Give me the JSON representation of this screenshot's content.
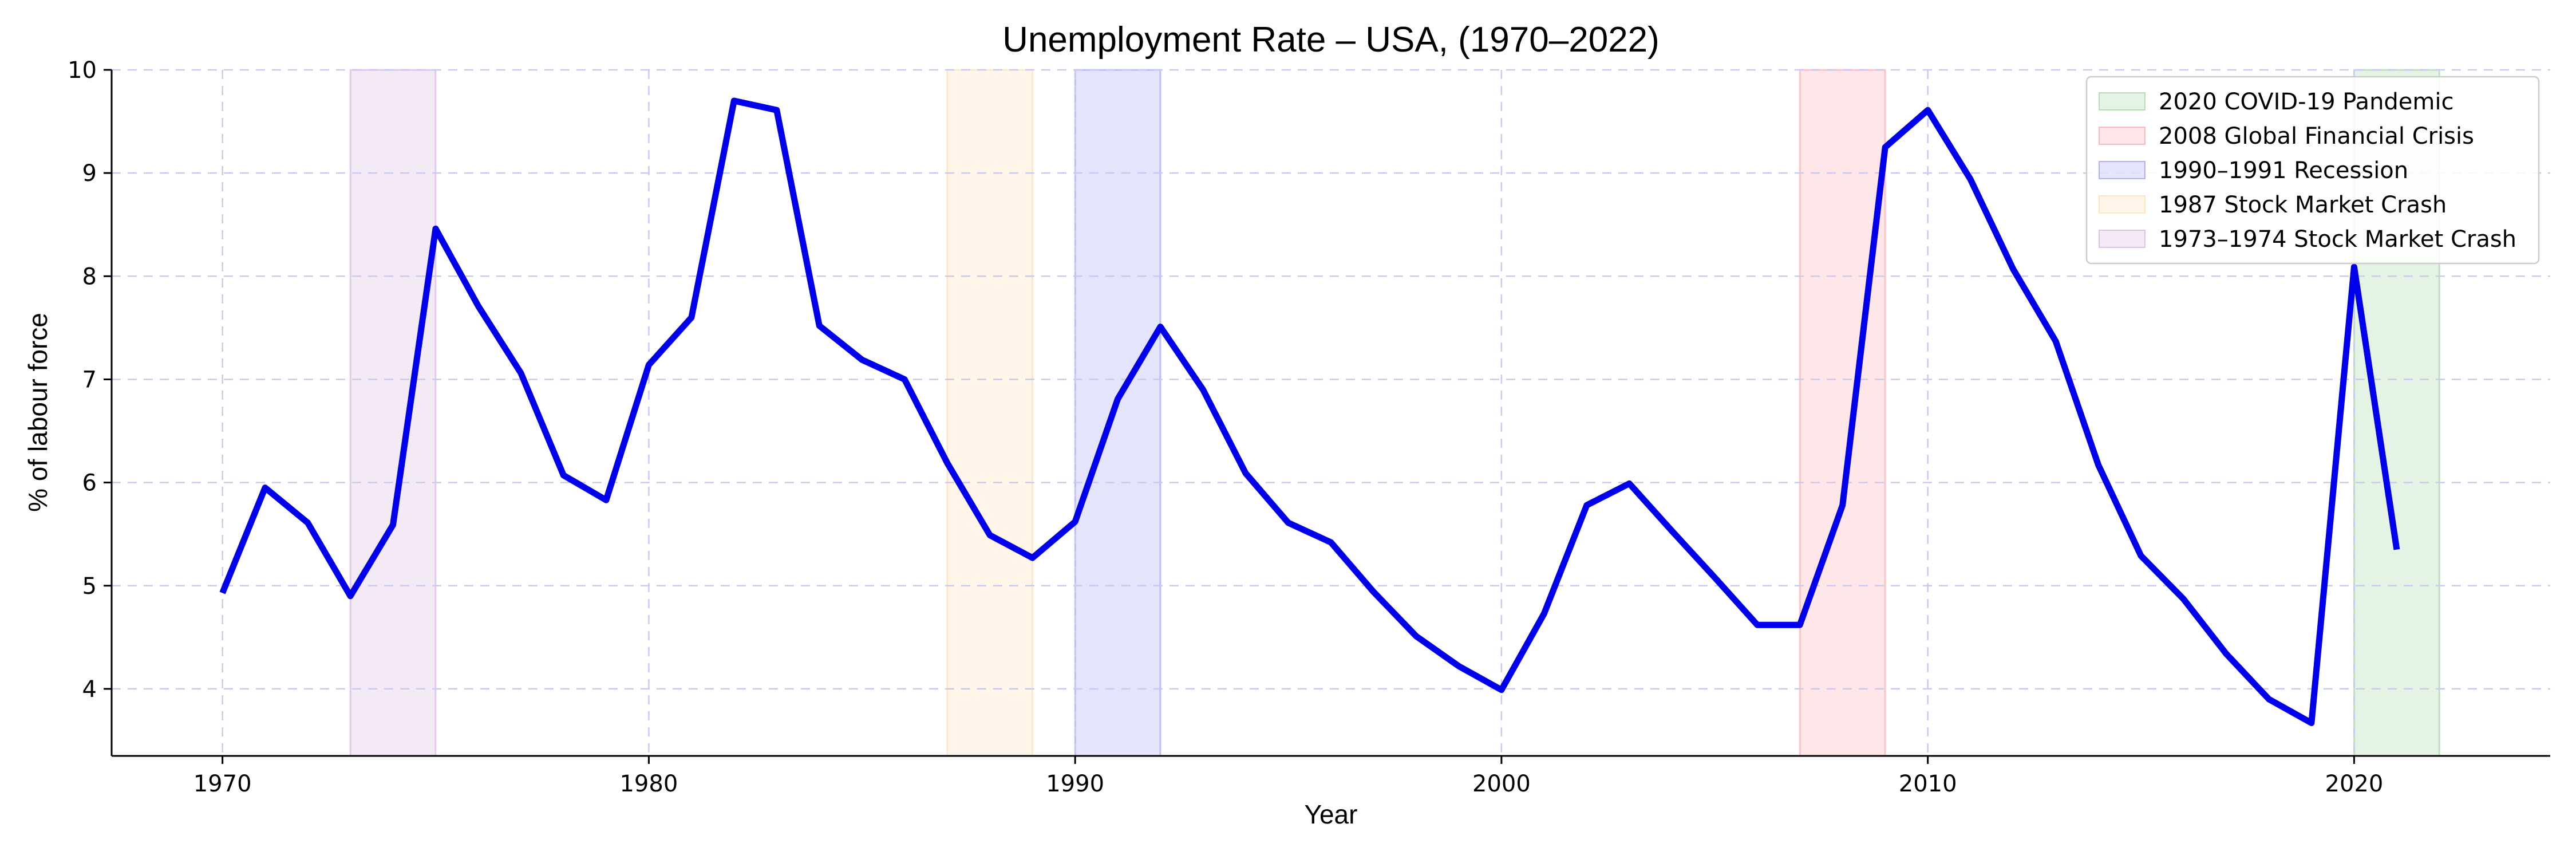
{
  "chart_data": {
    "type": "line",
    "title": "Unemployment Rate – USA, (1970–2022)",
    "xlabel": "Year",
    "ylabel": "% of labour force",
    "xlim": [
      1967.4,
      2024.6
    ],
    "ylim": [
      3.35,
      10.0
    ],
    "x_ticks": [
      1970,
      1980,
      1990,
      2000,
      2010,
      2020
    ],
    "y_ticks": [
      4,
      5,
      6,
      7,
      8,
      9,
      10
    ],
    "grid": true,
    "line_color": "#0000ee",
    "series": [
      {
        "x": [
          1970,
          1971,
          1972,
          1973,
          1974,
          1975,
          1976,
          1977,
          1978,
          1979,
          1980,
          1981,
          1982,
          1983,
          1984,
          1985,
          1986,
          1987,
          1988,
          1989,
          1990,
          1991,
          1992,
          1993,
          1994,
          1995,
          1996,
          1997,
          1998,
          1999,
          2000,
          2001,
          2002,
          2003,
          2004,
          2005,
          2006,
          2007,
          2008,
          2009,
          2010,
          2011,
          2012,
          2013,
          2014,
          2015,
          2016,
          2017,
          2018,
          2019,
          2020,
          2021
        ],
        "values": [
          4.93,
          5.95,
          5.61,
          4.9,
          5.59,
          8.46,
          7.71,
          7.06,
          6.07,
          5.83,
          7.14,
          7.6,
          9.7,
          9.61,
          7.52,
          7.19,
          7.0,
          6.19,
          5.49,
          5.27,
          5.62,
          6.81,
          7.51,
          6.9,
          6.09,
          5.61,
          5.42,
          4.94,
          4.51,
          4.22,
          3.99,
          4.73,
          5.78,
          5.99,
          5.53,
          5.08,
          4.62,
          4.62,
          5.78,
          9.25,
          9.61,
          8.94,
          8.07,
          7.37,
          6.17,
          5.29,
          4.87,
          4.34,
          3.9,
          3.67,
          8.09,
          5.35
        ]
      }
    ],
    "legend_position": "top-right",
    "recessions": [
      {
        "name": "2020 COVID-19 Pandemic",
        "start": 2020,
        "end": 2022,
        "color": "#2ca02c"
      },
      {
        "name": "2008 Global Financial Crisis",
        "start": 2007,
        "end": 2009,
        "color": "#ff3344"
      },
      {
        "name": "1990–1991 Recession",
        "start": 1990,
        "end": 1992,
        "color": "#2222ee"
      },
      {
        "name": "1987 Stock Market Crash",
        "start": 1987,
        "end": 1989,
        "color": "#ffb14a"
      },
      {
        "name": "1973–1974 Stock Market Crash",
        "start": 1973,
        "end": 1975,
        "color": "#9b4fb5"
      }
    ]
  }
}
